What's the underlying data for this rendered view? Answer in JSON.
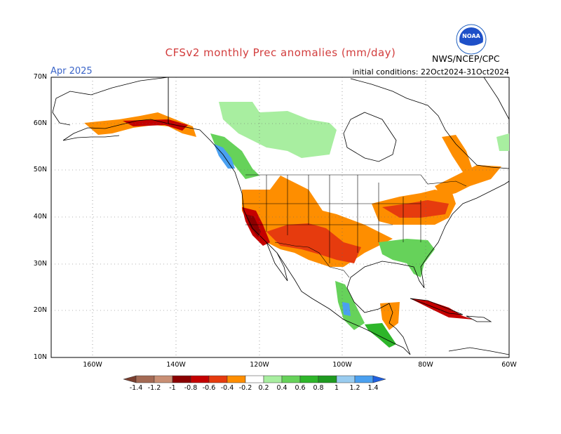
{
  "header": {
    "title": "CFSv2 monthly Prec anomalies (mm/day)",
    "valid_month": "Apr 2025",
    "initial_conditions": "initial conditions: 22Oct2024-31Oct2024",
    "agency": "NWS/NCEP/CPC",
    "logo_text": "NOAA"
  },
  "map": {
    "projection": "cylindrical equidistant",
    "lon_range": [
      -170,
      -60
    ],
    "lat_range": [
      10,
      70
    ],
    "lat_labels": [
      "70N",
      "60N",
      "50N",
      "40N",
      "30N",
      "20N",
      "10N"
    ],
    "lon_labels": [
      "160W",
      "140W",
      "120W",
      "100W",
      "80W",
      "60W"
    ],
    "grid": "dotted"
  },
  "colorbar": {
    "unit": "mm/day",
    "tick_labels": [
      "-1.4",
      "-1.2",
      "-1",
      "-0.8",
      "-0.6",
      "-0.4",
      "-0.2",
      "0.2",
      "0.4",
      "0.6",
      "0.8",
      "1",
      "1.2",
      "1.4"
    ],
    "colors": [
      "#7a3f2f",
      "#a46a54",
      "#c98f74",
      "#8b0000",
      "#c40000",
      "#e63b0e",
      "#fe8e00",
      "#ffffff",
      "#a8eea0",
      "#66d25a",
      "#2eb62a",
      "#1e9a20",
      "#99ccf0",
      "#4aa0f0",
      "#2060e0"
    ]
  },
  "anomaly_regions": [
    {
      "name": "alaska-dry",
      "color": "#fe8e00"
    },
    {
      "name": "california-dry",
      "color": "#c40000"
    },
    {
      "name": "southwest-dry",
      "color": "#e63b0e"
    },
    {
      "name": "southeast-wet",
      "color": "#66d25a"
    },
    {
      "name": "canada-wet",
      "color": "#a8eea0"
    },
    {
      "name": "caribbean-dry",
      "color": "#c40000"
    }
  ]
}
